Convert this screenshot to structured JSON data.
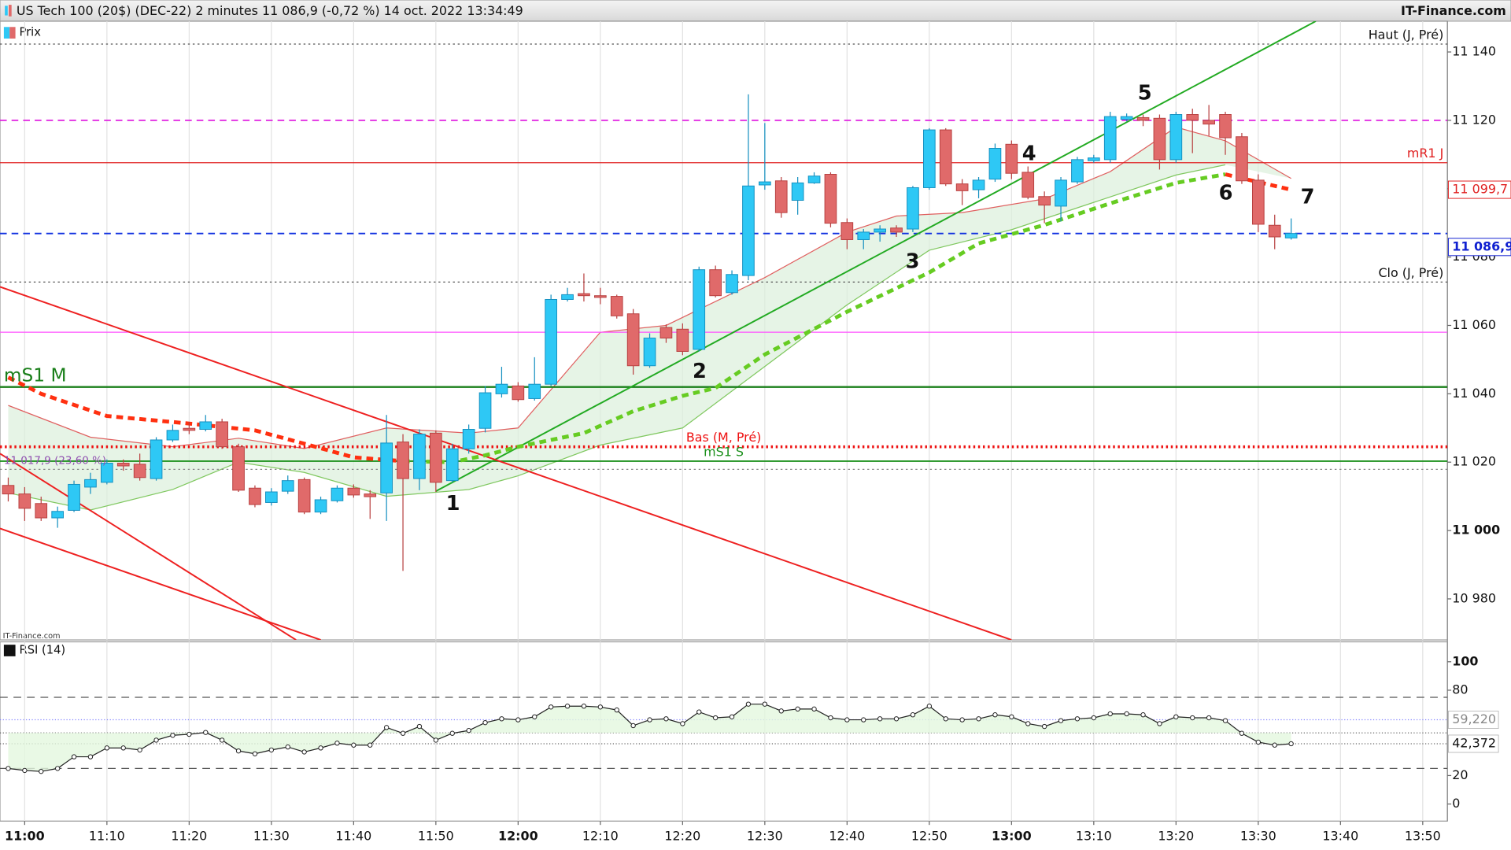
{
  "chart_data": [
    {
      "type": "candlestick",
      "title": "US Tech 100 (20$) (DEC-22) 2 minutes 11 086,9 (-0,72 %) 14 oct. 2022 13:34:49",
      "source": "IT-Finance.com",
      "legend": "Prix",
      "watermark": "IT-Finance.com",
      "x": [
        "10:58",
        "11:00",
        "11:02",
        "11:04",
        "11:06",
        "11:08",
        "11:10",
        "11:12",
        "11:14",
        "11:16",
        "11:18",
        "11:20",
        "11:22",
        "11:24",
        "11:26",
        "11:28",
        "11:30",
        "11:32",
        "11:34",
        "11:36",
        "11:38",
        "11:40",
        "11:42",
        "11:44",
        "11:46",
        "11:48",
        "11:50",
        "11:52",
        "11:54",
        "11:56",
        "11:58",
        "12:00",
        "12:02",
        "12:04",
        "12:06",
        "12:08",
        "12:10",
        "12:12",
        "12:14",
        "12:16",
        "12:18",
        "12:20",
        "12:22",
        "12:24",
        "12:26",
        "12:28",
        "12:30",
        "12:32",
        "12:34",
        "12:36",
        "12:38",
        "12:40",
        "12:42",
        "12:44",
        "12:46",
        "12:48",
        "12:50",
        "12:52",
        "12:54",
        "12:56",
        "12:58",
        "13:00",
        "13:02",
        "13:04",
        "13:06",
        "13:08",
        "13:10",
        "13:12",
        "13:14",
        "13:16",
        "13:18",
        "13:20",
        "13:22",
        "13:24",
        "13:26",
        "13:28",
        "13:30",
        "13:32",
        "13:34"
      ],
      "open": [
        11013.2,
        11010.7,
        11007.9,
        11003.7,
        11005.9,
        11012.7,
        11014.1,
        11019.7,
        11019.4,
        11015.2,
        11026.5,
        11029.9,
        11029.6,
        11031.8,
        11024.5,
        11012.4,
        11008.2,
        11011.5,
        11014.9,
        11005.4,
        11008.7,
        11012.4,
        11010.7,
        11011.0,
        11025.9,
        11015.2,
        11028.5,
        11014.6,
        11023.9,
        11029.9,
        11040.0,
        11042.3,
        11038.6,
        11042.8,
        11067.6,
        11069.3,
        11068.7,
        11068.5,
        11063.4,
        11048.2,
        11059.4,
        11058.9,
        11053.0,
        11076.3,
        11069.6,
        11074.6,
        11101.1,
        11102.3,
        11096.6,
        11101.7,
        11104.2,
        11090.1,
        11085.1,
        11087.3,
        11088.5,
        11088.2,
        11100.3,
        11117.2,
        11101.4,
        11099.7,
        11102.8,
        11113.0,
        11104.8,
        11097.7,
        11094.9,
        11102.0,
        11108.2,
        11108.5,
        11120.3,
        11120.8,
        11120.6,
        11108.5,
        11121.7,
        11120.0,
        11121.7,
        11115.2,
        11102.5,
        11089.3,
        11085.6
      ],
      "high": [
        11015.5,
        11012.7,
        11009.9,
        11007.0,
        11014.6,
        11016.9,
        11020.8,
        11020.8,
        11022.5,
        11027.3,
        11031.0,
        11031.8,
        11033.8,
        11032.7,
        11025.4,
        11013.2,
        11012.4,
        11016.1,
        11015.5,
        11009.9,
        11013.2,
        11013.5,
        11011.8,
        11033.8,
        11028.2,
        11029.6,
        11029.3,
        11025.4,
        11031.0,
        11042.3,
        11047.9,
        11043.4,
        11050.7,
        11069.0,
        11071.0,
        11075.2,
        11071.0,
        11069.0,
        11064.8,
        11057.7,
        11060.3,
        11060.6,
        11077.2,
        11077.5,
        11076.1,
        11127.6,
        11119.2,
        11103.4,
        11103.4,
        11104.8,
        11104.8,
        11091.3,
        11088.2,
        11089.3,
        11089.3,
        11100.8,
        11117.7,
        11117.7,
        11102.8,
        11103.4,
        11113.2,
        11114.1,
        11106.5,
        11099.2,
        11103.4,
        11109.3,
        11109.9,
        11122.5,
        11122.0,
        11121.7,
        11121.7,
        11122.5,
        11123.4,
        11124.5,
        11122.5,
        11116.3,
        11104.2,
        11092.4,
        11091.3
      ],
      "low": [
        11008.5,
        11002.8,
        11002.8,
        11000.8,
        11005.4,
        11010.7,
        11013.5,
        11017.5,
        11014.6,
        11014.6,
        11025.9,
        11028.2,
        11029.0,
        11023.9,
        11011.3,
        11006.8,
        11007.3,
        11010.7,
        11004.8,
        11004.8,
        11008.2,
        11009.6,
        11003.4,
        11002.8,
        10988.2,
        11011.8,
        11011.3,
        11014.1,
        11022.5,
        11028.7,
        11038.9,
        11037.7,
        11038.0,
        11042.3,
        11067.0,
        11067.0,
        11066.2,
        11062.0,
        11045.6,
        11047.6,
        11054.9,
        11051.3,
        11052.4,
        11068.2,
        11069.0,
        11073.2,
        11099.7,
        11091.5,
        11092.4,
        11101.4,
        11088.7,
        11082.3,
        11082.3,
        11084.5,
        11085.9,
        11087.3,
        11099.7,
        11100.8,
        11095.2,
        11097.2,
        11102.0,
        11102.8,
        11096.9,
        11089.9,
        11090.4,
        11101.4,
        11107.6,
        11107.6,
        11119.7,
        11118.3,
        11105.6,
        11107.6,
        11110.4,
        11115.5,
        11109.9,
        11101.4,
        11087.3,
        11082.3,
        11085.1
      ],
      "close": [
        11010.7,
        11006.5,
        11003.7,
        11005.6,
        11013.5,
        11014.9,
        11019.7,
        11018.9,
        11015.5,
        11026.5,
        11029.3,
        11029.3,
        11031.8,
        11024.5,
        11011.8,
        11007.6,
        11011.3,
        11014.6,
        11005.4,
        11009.0,
        11012.4,
        11010.4,
        11009.9,
        11025.6,
        11015.2,
        11028.2,
        11014.1,
        11023.9,
        11029.6,
        11040.3,
        11042.8,
        11038.3,
        11042.8,
        11067.6,
        11069.0,
        11068.7,
        11068.2,
        11062.8,
        11048.2,
        11056.3,
        11056.3,
        11052.4,
        11076.3,
        11068.7,
        11074.9,
        11100.8,
        11102.0,
        11093.0,
        11101.7,
        11103.7,
        11089.9,
        11085.1,
        11087.3,
        11088.2,
        11087.3,
        11100.3,
        11117.2,
        11101.4,
        11099.4,
        11102.5,
        11111.8,
        11104.5,
        11097.5,
        11095.2,
        11102.5,
        11108.5,
        11109.0,
        11121.1,
        11121.1,
        11120.0,
        11108.5,
        11121.7,
        11120.0,
        11118.9,
        11114.9,
        11102.3,
        11089.6,
        11085.9,
        11086.9
      ],
      "up_color": "#2ec8f5",
      "down_color": "#e06a6a",
      "xlim": [
        "10:57",
        "13:53"
      ],
      "xticks": [
        "11:00",
        "11:10",
        "11:20",
        "11:30",
        "11:40",
        "11:50",
        "12:00",
        "12:10",
        "12:20",
        "12:30",
        "12:40",
        "12:50",
        "13:00",
        "13:10",
        "13:20",
        "13:30",
        "13:40",
        "13:50"
      ],
      "ylim": [
        10968,
        11149
      ],
      "yticks": [
        {
          "value": 10980,
          "label": "10 980"
        },
        {
          "value": 11000,
          "label": "11 000"
        },
        {
          "value": 11020,
          "label": "11 020"
        },
        {
          "value": 11040,
          "label": "11 040"
        },
        {
          "value": 11060,
          "label": "11 060"
        },
        {
          "value": 11080,
          "label": "11 080"
        },
        {
          "value": 11100,
          "label": "11 100"
        },
        {
          "value": 11120,
          "label": "11 120"
        },
        {
          "value": 11140,
          "label": "11 140"
        }
      ],
      "grid": "vertical",
      "levels": [
        {
          "value": 11142.3,
          "label": "Haut (J, Pré)",
          "color": "#555555",
          "style": "dotted",
          "width": 1,
          "label_at": "right"
        },
        {
          "value": 11120,
          "color": "#e020e0",
          "style": "dashed",
          "width": 1.5
        },
        {
          "value": 11107.6,
          "label": "mR1 J",
          "color": "#e02020",
          "style": "solid",
          "width": 1,
          "label_at": "right"
        },
        {
          "value": 11086.9,
          "color": "#1030e0",
          "style": "dashed",
          "width": 1.5
        },
        {
          "value": 11072.7,
          "label": "Clo (J, Pré)",
          "color": "#555555",
          "style": "dotted",
          "width": 1,
          "label_at": "right"
        },
        {
          "value": 11058.0,
          "color": "#ff50ff",
          "style": "solid",
          "width": 1
        },
        {
          "value": 11042.0,
          "label": "mS1 M",
          "color": "#1a7f1a",
          "style": "solid",
          "width": 2,
          "label_at": "left"
        },
        {
          "value": 11024.5,
          "label": "Bas (M, Pré)",
          "color": "#ee1010",
          "style": "dotted",
          "width": 3,
          "label_at": "middle"
        },
        {
          "value": 11020.3,
          "label": "mS1 S",
          "color": "#1a8f1a",
          "style": "solid",
          "width": 1.5,
          "label_at": "middle"
        },
        {
          "value": 11017.9,
          "label": "11 017,9 (23,60 %)",
          "color": "#888888",
          "style": "dotted",
          "width": 1,
          "label_at": "left"
        }
      ],
      "price_labels": [
        {
          "value": 11099.7,
          "label": "11 099,7",
          "color": "#e02020"
        },
        {
          "value": 11086.9,
          "label": "11 086,9",
          "color": "#1020d0"
        }
      ],
      "bands": [
        {
          "x": [
            "10:58",
            "11:08",
            "11:18",
            "11:26",
            "11:34",
            "11:44",
            "11:54",
            "12:00",
            "12:10",
            "12:18",
            "12:30",
            "12:40",
            "12:46",
            "12:54",
            "13:04",
            "13:12",
            "13:20",
            "13:26",
            "13:34"
          ],
          "values": [
            11036.6,
            11027.3,
            11024.5,
            11027.0,
            11024.0,
            11030.0,
            11028.5,
            11030.0,
            11058.0,
            11060.0,
            11074.0,
            11087.3,
            11092.0,
            11093.0,
            11097.0,
            11105.0,
            11118.0,
            11114.0,
            11103.0
          ],
          "color": "#e06060"
        },
        {
          "x": [
            "10:58",
            "11:08",
            "11:18",
            "11:26",
            "11:34",
            "11:44",
            "11:54",
            "12:00",
            "12:10",
            "12:20",
            "12:30",
            "12:40",
            "12:50",
            "13:00",
            "13:10",
            "13:20",
            "13:26"
          ],
          "values": [
            11011.0,
            11006.0,
            11012.0,
            11020.0,
            11017.0,
            11010.0,
            11012.0,
            11016.0,
            11025.0,
            11030.0,
            11048.0,
            11066.0,
            11082.0,
            11088.0,
            11096.0,
            11104.0,
            11107.0
          ],
          "color": "#80c860"
        }
      ],
      "overlays": [
        {
          "x": [
            "10:58",
            "11:02",
            "11:10",
            "11:20",
            "11:28",
            "11:34",
            "11:40",
            "11:46"
          ],
          "values": [
            11044.8,
            11040.0,
            11033.5,
            11031.3,
            11029.3,
            11025.4,
            11021.4,
            11020.3
          ],
          "color": "#ff3010",
          "style": "dashed",
          "width": 4
        },
        {
          "x": [
            "11:46",
            "11:52",
            "11:56",
            "12:00",
            "12:08",
            "12:14",
            "12:20",
            "12:24",
            "12:30",
            "12:40",
            "12:50",
            "12:56",
            "13:04",
            "13:12",
            "13:20",
            "13:26"
          ],
          "values": [
            11020.3,
            11020.0,
            11022.0,
            11024.5,
            11028.5,
            11034.9,
            11039.4,
            11041.7,
            11051.5,
            11064.0,
            11075.5,
            11084.0,
            11089.4,
            11095.7,
            11101.7,
            11104.2
          ],
          "color": "#66cc22",
          "style": "dashed",
          "width": 4
        },
        {
          "x": [
            "13:26",
            "13:34"
          ],
          "values": [
            11104.2,
            11099.7
          ],
          "color": "#ff3010",
          "style": "dashed",
          "width": 4
        }
      ],
      "trendlines": [
        {
          "x": [
            "11:50",
            "13:37"
          ],
          "values": [
            11011.5,
            11149
          ],
          "color": "#22aa22"
        },
        {
          "x": [
            "10:57",
            "13:00"
          ],
          "values": [
            11071.3,
            10968
          ],
          "color": "#ee2020"
        },
        {
          "x": [
            "10:57",
            "11:33"
          ],
          "values": [
            11022.5,
            10968
          ],
          "color": "#ee2020"
        },
        {
          "x": [
            "10:57",
            "11:36"
          ],
          "values": [
            11000.6,
            10968
          ],
          "color": "#ee2020"
        }
      ],
      "annotations": [
        "1",
        "2",
        "3",
        "4",
        "5",
        "6",
        "7"
      ]
    },
    {
      "type": "line",
      "title": "RSI (14)",
      "color": "#222222",
      "values": [
        25.0,
        23.6,
        22.9,
        25.0,
        33.2,
        33.2,
        39.4,
        39.4,
        38.0,
        44.9,
        48.3,
        49.0,
        50.3,
        44.9,
        37.3,
        35.3,
        38.0,
        40.1,
        36.6,
        39.4,
        42.8,
        41.4,
        41.4,
        53.8,
        49.7,
        54.5,
        44.9,
        49.7,
        51.7,
        57.2,
        59.9,
        59.2,
        61.3,
        68.2,
        68.8,
        68.8,
        68.2,
        66.1,
        55.1,
        59.2,
        59.9,
        56.5,
        64.7,
        60.6,
        61.3,
        70.2,
        70.2,
        65.4,
        66.8,
        66.8,
        60.6,
        59.2,
        59.2,
        59.9,
        59.9,
        62.7,
        68.8,
        59.9,
        59.2,
        59.9,
        62.7,
        61.3,
        56.5,
        54.5,
        58.6,
        59.9,
        60.6,
        63.4,
        63.4,
        62.7,
        56.5,
        61.3,
        60.6,
        60.6,
        58.6,
        49.7,
        43.5,
        41.4,
        42.372
      ],
      "ylim": [
        -12,
        114
      ],
      "yticks": [
        0,
        20,
        80,
        100
      ],
      "levels": [
        75,
        25,
        50
      ],
      "markers": [
        {
          "value": 59.22,
          "label": "59,220"
        },
        {
          "value": 42.372,
          "label": "42,372"
        }
      ]
    }
  ]
}
